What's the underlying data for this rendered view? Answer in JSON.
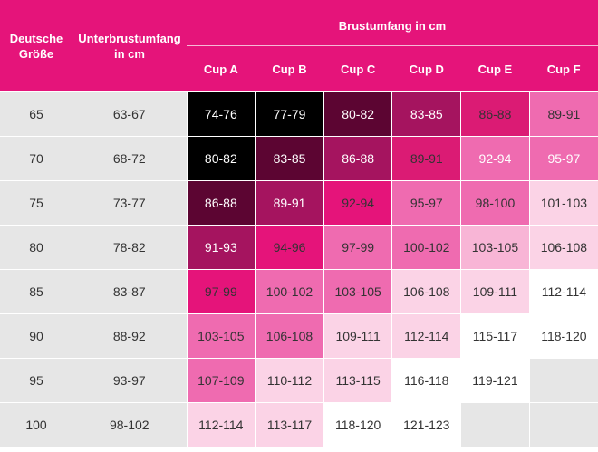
{
  "header": {
    "col_size": "Deutsche Größe",
    "col_underbust_line1": "Unterbrustumfang",
    "col_underbust_line2": "in cm",
    "col_size_line1": "Deutsche",
    "col_size_line2": "Größe",
    "group_label": "Brustumfang in cm",
    "cups": [
      "Cup A",
      "Cup B",
      "Cup C",
      "Cup D",
      "Cup E",
      "Cup F"
    ]
  },
  "colors": {
    "header_bg": "#e5147a",
    "label_bg": "#e6e6e6",
    "empty_cell": "#e6e6e6"
  },
  "rows": [
    {
      "size": "65",
      "underbust": "63-67",
      "cells": [
        {
          "v": "74-76",
          "bg": "#000000",
          "fg": "#ffffff"
        },
        {
          "v": "77-79",
          "bg": "#000000",
          "fg": "#ffffff"
        },
        {
          "v": "80-82",
          "bg": "#5c0532",
          "fg": "#ffffff"
        },
        {
          "v": "83-85",
          "bg": "#a5145f",
          "fg": "#ffffff"
        },
        {
          "v": "86-88",
          "bg": "#db1b74",
          "fg": "#333333"
        },
        {
          "v": "89-91",
          "bg": "#ef6bb0",
          "fg": "#333333"
        }
      ]
    },
    {
      "size": "70",
      "underbust": "68-72",
      "cells": [
        {
          "v": "80-82",
          "bg": "#000000",
          "fg": "#ffffff"
        },
        {
          "v": "83-85",
          "bg": "#5c0532",
          "fg": "#ffffff"
        },
        {
          "v": "86-88",
          "bg": "#a5145f",
          "fg": "#ffffff"
        },
        {
          "v": "89-91",
          "bg": "#db1b74",
          "fg": "#333333"
        },
        {
          "v": "92-94",
          "bg": "#ef6bb0",
          "fg": "#ffffff"
        },
        {
          "v": "95-97",
          "bg": "#ef6bb0",
          "fg": "#ffffff"
        }
      ]
    },
    {
      "size": "75",
      "underbust": "73-77",
      "cells": [
        {
          "v": "86-88",
          "bg": "#5c0532",
          "fg": "#ffffff"
        },
        {
          "v": "89-91",
          "bg": "#a5145f",
          "fg": "#ffffff"
        },
        {
          "v": "92-94",
          "bg": "#e5147a",
          "fg": "#333333"
        },
        {
          "v": "95-97",
          "bg": "#ef6bb0",
          "fg": "#333333"
        },
        {
          "v": "98-100",
          "bg": "#ef6bb0",
          "fg": "#333333"
        },
        {
          "v": "101-103",
          "bg": "#fbd3e6",
          "fg": "#333333"
        }
      ]
    },
    {
      "size": "80",
      "underbust": "78-82",
      "cells": [
        {
          "v": "91-93",
          "bg": "#a5145f",
          "fg": "#ffffff"
        },
        {
          "v": "94-96",
          "bg": "#e5147a",
          "fg": "#333333"
        },
        {
          "v": "97-99",
          "bg": "#ef6bb0",
          "fg": "#333333"
        },
        {
          "v": "100-102",
          "bg": "#ef6bb0",
          "fg": "#333333"
        },
        {
          "v": "103-105",
          "bg": "#f8b5d6",
          "fg": "#333333"
        },
        {
          "v": "106-108",
          "bg": "#fbd3e6",
          "fg": "#333333"
        }
      ]
    },
    {
      "size": "85",
      "underbust": "83-87",
      "cells": [
        {
          "v": "97-99",
          "bg": "#e5147a",
          "fg": "#333333"
        },
        {
          "v": "100-102",
          "bg": "#ef6bb0",
          "fg": "#333333"
        },
        {
          "v": "103-105",
          "bg": "#ef6bb0",
          "fg": "#333333"
        },
        {
          "v": "106-108",
          "bg": "#fbd3e6",
          "fg": "#333333"
        },
        {
          "v": "109-111",
          "bg": "#fbd3e6",
          "fg": "#333333"
        },
        {
          "v": "112-114",
          "bg": "#ffffff",
          "fg": "#333333"
        }
      ]
    },
    {
      "size": "90",
      "underbust": "88-92",
      "cells": [
        {
          "v": "103-105",
          "bg": "#ef6bb0",
          "fg": "#333333"
        },
        {
          "v": "106-108",
          "bg": "#ef6bb0",
          "fg": "#333333"
        },
        {
          "v": "109-111",
          "bg": "#fbd3e6",
          "fg": "#333333"
        },
        {
          "v": "112-114",
          "bg": "#fbd3e6",
          "fg": "#333333"
        },
        {
          "v": "115-117",
          "bg": "#ffffff",
          "fg": "#333333"
        },
        {
          "v": "118-120",
          "bg": "#ffffff",
          "fg": "#333333"
        }
      ]
    },
    {
      "size": "95",
      "underbust": "93-97",
      "cells": [
        {
          "v": "107-109",
          "bg": "#ef6bb0",
          "fg": "#333333"
        },
        {
          "v": "110-112",
          "bg": "#fbd3e6",
          "fg": "#333333"
        },
        {
          "v": "113-115",
          "bg": "#fbd3e6",
          "fg": "#333333"
        },
        {
          "v": "116-118",
          "bg": "#ffffff",
          "fg": "#333333"
        },
        {
          "v": "119-121",
          "bg": "#ffffff",
          "fg": "#333333"
        },
        {
          "v": "",
          "bg": "#e6e6e6",
          "fg": "#333333"
        }
      ]
    },
    {
      "size": "100",
      "underbust": "98-102",
      "cells": [
        {
          "v": "112-114",
          "bg": "#fbd3e6",
          "fg": "#333333"
        },
        {
          "v": "113-117",
          "bg": "#fbd3e6",
          "fg": "#333333"
        },
        {
          "v": "118-120",
          "bg": "#ffffff",
          "fg": "#333333"
        },
        {
          "v": "121-123",
          "bg": "#ffffff",
          "fg": "#333333"
        },
        {
          "v": "",
          "bg": "#e6e6e6",
          "fg": "#333333"
        },
        {
          "v": "",
          "bg": "#e6e6e6",
          "fg": "#333333"
        }
      ]
    }
  ]
}
